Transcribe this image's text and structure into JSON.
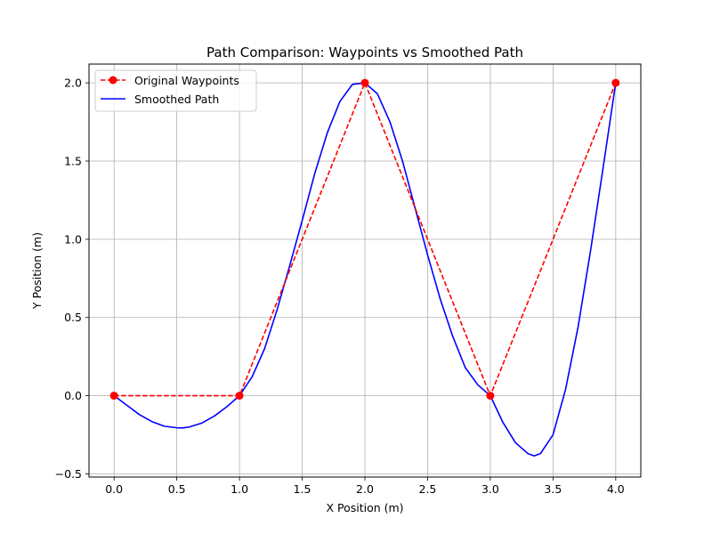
{
  "chart_data": {
    "type": "line",
    "title": "Path Comparison: Waypoints vs Smoothed Path",
    "xlabel": "X Position (m)",
    "ylabel": "Y Position (m)",
    "xlim": [
      -0.2,
      4.2
    ],
    "ylim": [
      -0.52,
      2.12
    ],
    "xticks": [
      0.0,
      0.5,
      1.0,
      1.5,
      2.0,
      2.5,
      3.0,
      3.5,
      4.0
    ],
    "xtick_labels": [
      "0.0",
      "0.5",
      "1.0",
      "1.5",
      "2.0",
      "2.5",
      "3.0",
      "3.5",
      "4.0"
    ],
    "yticks": [
      -0.5,
      0.0,
      0.5,
      1.0,
      1.5,
      2.0
    ],
    "ytick_labels": [
      "−0.5",
      "0.0",
      "0.5",
      "1.0",
      "1.5",
      "2.0"
    ],
    "grid": true,
    "legend_position": "top-left",
    "series": [
      {
        "name": "Original Waypoints",
        "color": "#ff0000",
        "style": "dashed-with-circle-markers",
        "x": [
          0,
          1,
          2,
          3,
          4
        ],
        "y": [
          0,
          0,
          2,
          0,
          2
        ]
      },
      {
        "name": "Smoothed Path",
        "color": "#0000ff",
        "style": "solid",
        "x": [
          0,
          0.1,
          0.2,
          0.3,
          0.4,
          0.5,
          0.55,
          0.6,
          0.7,
          0.8,
          0.9,
          1.0,
          1.1,
          1.2,
          1.3,
          1.4,
          1.5,
          1.6,
          1.7,
          1.8,
          1.9,
          2.0,
          2.1,
          2.2,
          2.3,
          2.4,
          2.5,
          2.6,
          2.7,
          2.8,
          2.9,
          3.0,
          3.1,
          3.2,
          3.3,
          3.35,
          3.4,
          3.5,
          3.6,
          3.7,
          3.8,
          3.9,
          4.0
        ],
        "y": [
          0,
          -0.06,
          -0.12,
          -0.165,
          -0.195,
          -0.205,
          -0.206,
          -0.2,
          -0.175,
          -0.13,
          -0.07,
          0.0,
          0.12,
          0.3,
          0.55,
          0.83,
          1.12,
          1.42,
          1.68,
          1.88,
          1.99,
          2.0,
          1.93,
          1.75,
          1.5,
          1.2,
          0.9,
          0.62,
          0.38,
          0.18,
          0.07,
          0.0,
          -0.17,
          -0.3,
          -0.37,
          -0.385,
          -0.37,
          -0.25,
          0.04,
          0.44,
          0.93,
          1.46,
          2.0
        ]
      }
    ]
  }
}
